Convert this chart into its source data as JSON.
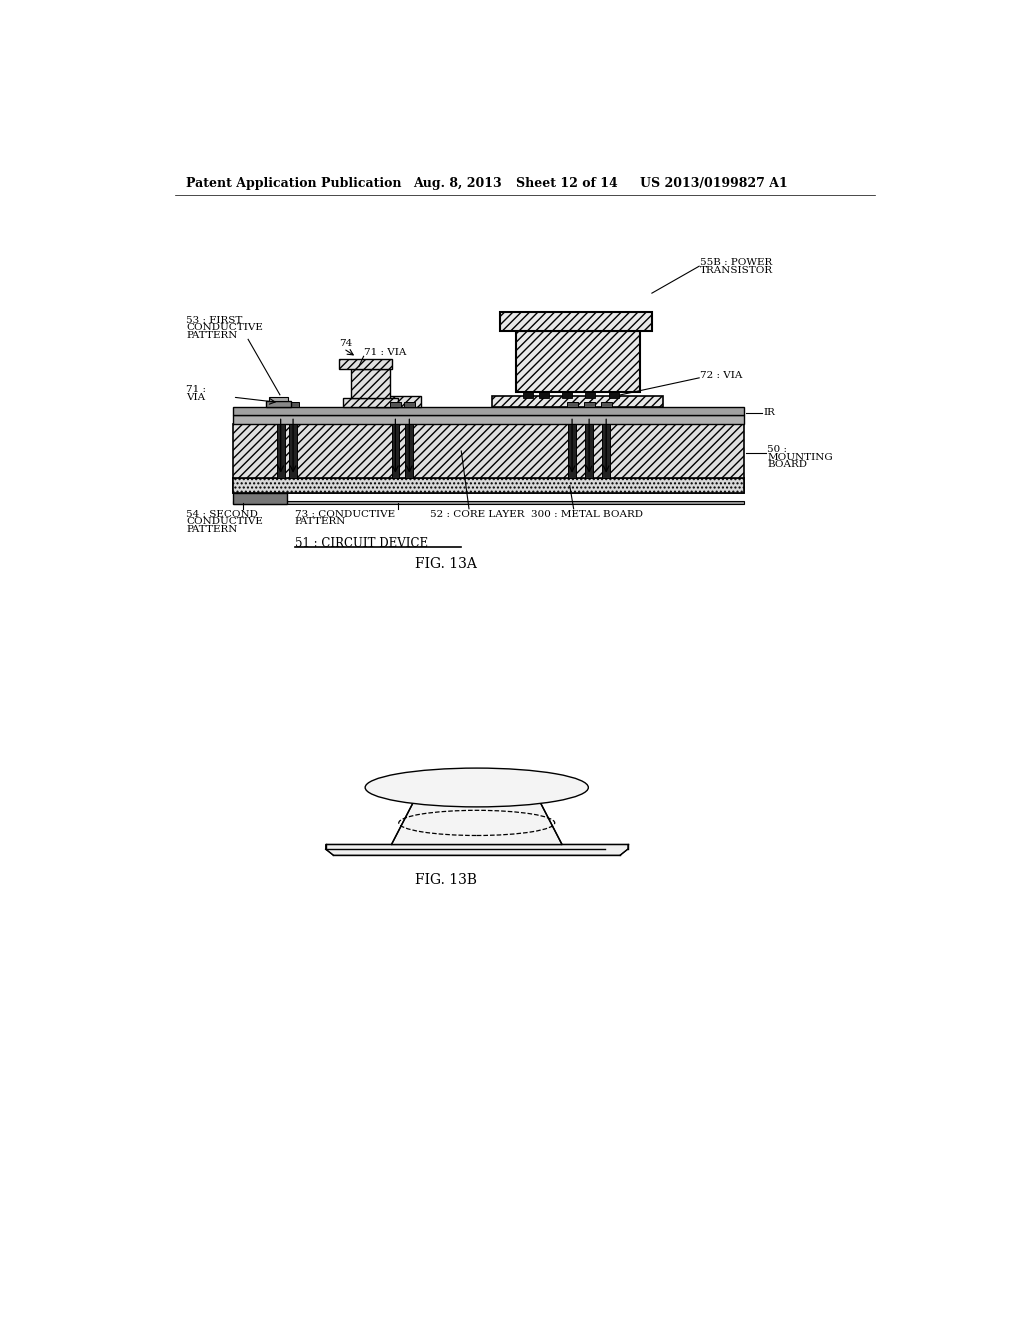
{
  "bg_color": "#ffffff",
  "header_text": "Patent Application Publication",
  "header_date": "Aug. 8, 2013",
  "header_sheet": "Sheet 12 of 14",
  "header_patent": "US 2013/0199827 A1",
  "fig13a_label": "FIG. 13A",
  "fig13b_label": "FIG. 13B",
  "label_fontsize": 10,
  "header_fontsize": 9,
  "annotation_fontsize": 7.5
}
